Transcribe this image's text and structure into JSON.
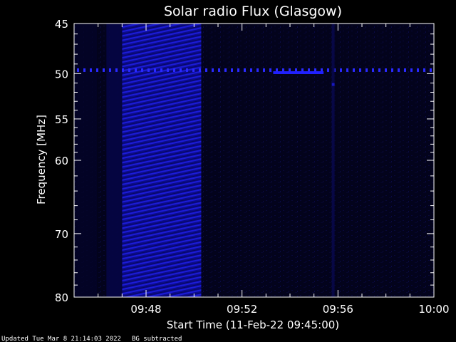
{
  "chart_data": {
    "type": "heatmap",
    "title": "Solar radio Flux (Glasgow)",
    "xlabel": "Start Time (11-Feb-22 09:45:00)",
    "ylabel": "Frequency [MHz]",
    "x_unit": "minutes after 09:45:00",
    "x_range": [
      0,
      15
    ],
    "y_range": [
      45,
      80
    ],
    "y_scale": "log",
    "x_ticks": [
      {
        "value": 3,
        "label": "09:48"
      },
      {
        "value": 7,
        "label": "09:52"
      },
      {
        "value": 11,
        "label": "09:56"
      },
      {
        "value": 15,
        "label": "10:00"
      }
    ],
    "y_ticks": [
      {
        "value": 45,
        "label": "45"
      },
      {
        "value": 50,
        "label": "50"
      },
      {
        "value": 55,
        "label": "55"
      },
      {
        "value": 60,
        "label": "60"
      },
      {
        "value": 70,
        "label": "70"
      },
      {
        "value": 80,
        "label": "80"
      }
    ],
    "colormap": {
      "low": "#000000",
      "mid": "#0a0a5a",
      "high": "#1a1aff"
    },
    "features": {
      "bright_band": {
        "x_start": 2.0,
        "x_end": 5.3,
        "y_start": 45,
        "y_end": 80
      },
      "interference_line": {
        "y": 49.6,
        "x_start": 0,
        "x_end": 15
      },
      "emission_segment": {
        "y": 49.9,
        "x_start": 8.3,
        "x_end": 10.4
      },
      "vertical_streak": {
        "x": 10.8
      }
    }
  },
  "footer": {
    "updated": "Updated Tue Mar  8 21:14:03 2022",
    "note": "BG subtracted"
  }
}
